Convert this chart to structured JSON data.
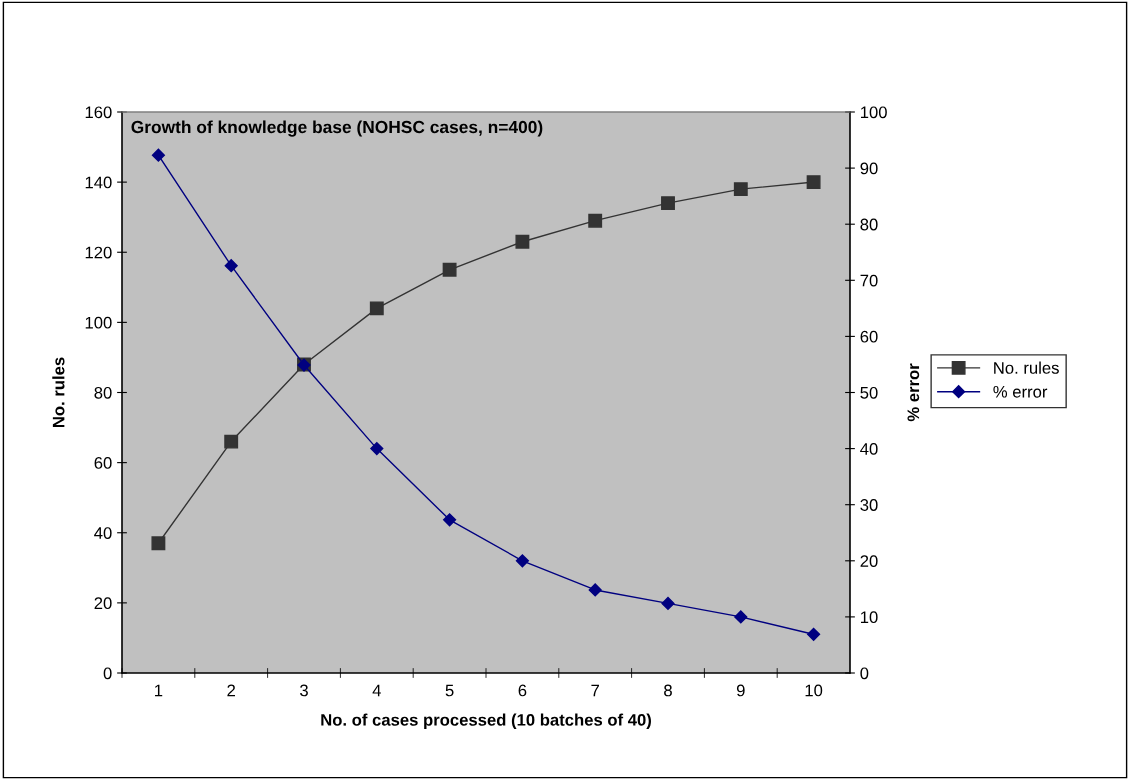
{
  "chart_data": {
    "type": "line",
    "title": "Growth of knowledge base (NOHSC cases, n=400)",
    "xlabel": "No. of cases processed (10 batches of 40)",
    "ylabel": "No. rules",
    "y2label": "% error",
    "categories": [
      "1",
      "2",
      "3",
      "4",
      "5",
      "6",
      "7",
      "8",
      "9",
      "10"
    ],
    "series": [
      {
        "name": "No. rules",
        "color": "#333333",
        "marker": "square",
        "values": [
          37,
          66,
          88,
          104,
          115,
          123,
          129,
          134,
          138,
          140
        ]
      },
      {
        "name": "% error",
        "color": "#000080",
        "marker": "diamond",
        "axis": "y2",
        "values": [
          92.3,
          72.6,
          54.9,
          40.0,
          27.3,
          20.0,
          14.8,
          12.4,
          10.0,
          6.9
        ]
      }
    ],
    "ylim": [
      0,
      160
    ],
    "yticks": [
      0,
      20,
      40,
      60,
      80,
      100,
      120,
      140,
      160
    ],
    "y2lim": [
      0,
      100
    ],
    "y2ticks": [
      0,
      10,
      20,
      30,
      40,
      50,
      60,
      70,
      80,
      90,
      100
    ],
    "grid": false,
    "legend": "right",
    "line_style": "solid"
  }
}
